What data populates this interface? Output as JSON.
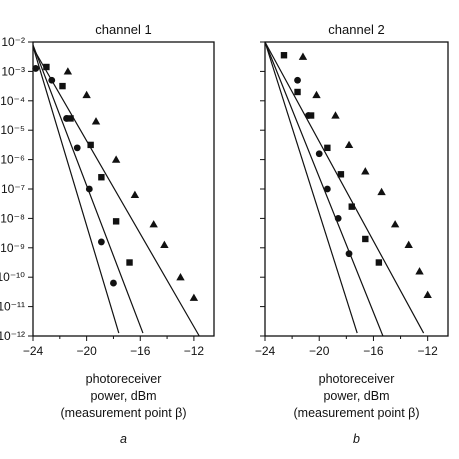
{
  "chart_data": [
    {
      "type": "scatter",
      "title": "channel 1",
      "xlabel_lines": [
        "photoreceiver",
        "power, dBm",
        "(measurement point β)"
      ],
      "panel_label": "a",
      "xlim": [
        -24,
        -10.5
      ],
      "xticks": [
        -24,
        -20,
        -16,
        -12
      ],
      "xtick_labels": [
        "−24",
        "−20",
        "−16",
        "−12"
      ],
      "yscale": "log",
      "ylim": [
        1e-12,
        0.01
      ],
      "ytick_exponents": [
        -2,
        -3,
        -4,
        -5,
        -6,
        -7,
        -8,
        -9,
        -10,
        -11,
        -12
      ],
      "ytick_labels": [
        "10⁻²",
        "10⁻³",
        "10⁻⁴",
        "10⁻⁵",
        "10⁻⁶",
        "10⁻⁷",
        "10⁻⁸",
        "10⁻⁹",
        "10⁻¹⁰",
        "10⁻¹¹",
        "10⁻¹²"
      ],
      "series": [
        {
          "marker": "circle",
          "points": [
            [
              -23.8,
              -2.9
            ],
            [
              -22.6,
              -3.3
            ],
            [
              -21.5,
              -4.6
            ],
            [
              -20.7,
              -5.6
            ],
            [
              -19.8,
              -7.0
            ],
            [
              -18.9,
              -8.8
            ],
            [
              -18.0,
              -10.2
            ]
          ],
          "line": [
            [
              -24,
              -2.15
            ],
            [
              -17.6,
              -11.9
            ]
          ]
        },
        {
          "marker": "square",
          "points": [
            [
              -23.0,
              -2.85
            ],
            [
              -21.8,
              -3.5
            ],
            [
              -21.2,
              -4.6
            ],
            [
              -19.7,
              -5.5
            ],
            [
              -18.9,
              -6.6
            ],
            [
              -17.8,
              -8.1
            ],
            [
              -16.8,
              -9.5
            ]
          ],
          "line": [
            [
              -24,
              -2.1
            ],
            [
              -15.8,
              -11.9
            ]
          ]
        },
        {
          "marker": "triangle",
          "points": [
            [
              -21.4,
              -3.0
            ],
            [
              -20.0,
              -3.8
            ],
            [
              -19.3,
              -4.7
            ],
            [
              -17.8,
              -6.0
            ],
            [
              -16.4,
              -7.2
            ],
            [
              -15.0,
              -8.2
            ],
            [
              -14.2,
              -8.9
            ],
            [
              -13.0,
              -10.0
            ],
            [
              -12.0,
              -10.7
            ]
          ],
          "line": [
            [
              -24,
              -2.2
            ],
            [
              -11.6,
              -12.0
            ]
          ]
        }
      ]
    },
    {
      "type": "scatter",
      "title": "channel 2",
      "xlabel_lines": [
        "photoreceiver",
        "power, dBm",
        "(measurement point β)"
      ],
      "panel_label": "b",
      "xlim": [
        -24,
        -10.5
      ],
      "xticks": [
        -24,
        -20,
        -16,
        -12
      ],
      "xtick_labels": [
        "−24",
        "−20",
        "−16",
        "−12"
      ],
      "yscale": "log",
      "ylim": [
        1e-12,
        0.01
      ],
      "series": [
        {
          "marker": "circle",
          "points": [
            [
              -21.6,
              -3.3
            ],
            [
              -20.8,
              -4.5
            ],
            [
              -20.0,
              -5.8
            ],
            [
              -19.4,
              -7.0
            ],
            [
              -18.6,
              -8.0
            ],
            [
              -17.8,
              -9.2
            ]
          ],
          "line": [
            [
              -24,
              -2.0
            ],
            [
              -17.2,
              -11.9
            ]
          ]
        },
        {
          "marker": "square",
          "points": [
            [
              -22.6,
              -2.45
            ],
            [
              -21.6,
              -3.7
            ],
            [
              -20.6,
              -4.5
            ],
            [
              -19.4,
              -5.6
            ],
            [
              -18.4,
              -6.5
            ],
            [
              -17.6,
              -7.6
            ],
            [
              -16.6,
              -8.7
            ],
            [
              -15.6,
              -9.5
            ]
          ],
          "line": [
            [
              -24,
              -2.0
            ],
            [
              -15.3,
              -12.0
            ]
          ]
        },
        {
          "marker": "triangle",
          "points": [
            [
              -21.2,
              -2.5
            ],
            [
              -20.2,
              -3.8
            ],
            [
              -18.8,
              -4.5
            ],
            [
              -17.8,
              -5.5
            ],
            [
              -16.6,
              -6.4
            ],
            [
              -15.4,
              -7.1
            ],
            [
              -14.4,
              -8.2
            ],
            [
              -13.4,
              -8.9
            ],
            [
              -12.6,
              -9.8
            ],
            [
              -12.0,
              -10.6
            ]
          ],
          "line": [
            [
              -24,
              -2.0
            ],
            [
              -12.3,
              -11.9
            ]
          ]
        }
      ]
    }
  ]
}
